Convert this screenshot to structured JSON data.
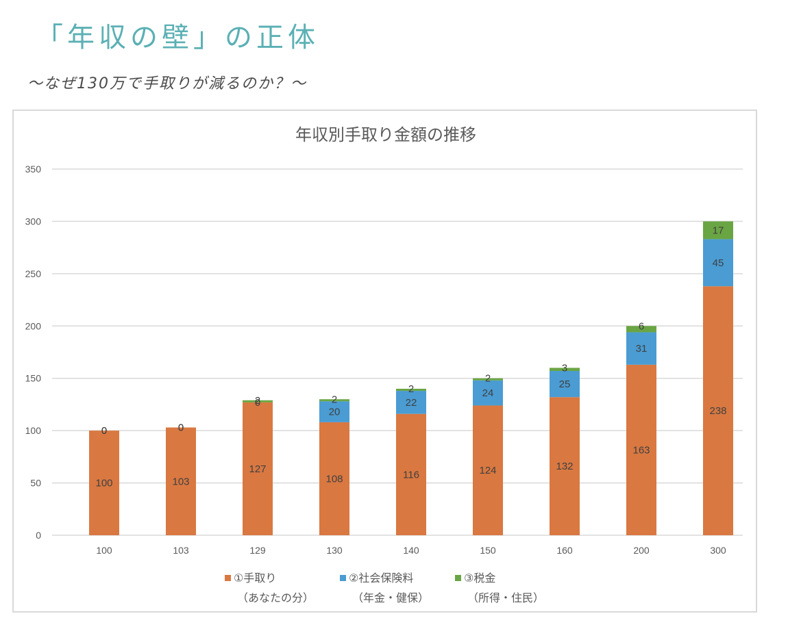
{
  "header": {
    "title": "「年収の壁」の正体",
    "subtitle": "～なぜ130万で手取りが減るのか？～"
  },
  "chart_data": {
    "type": "bar",
    "stacked": true,
    "title": "年収別手取り金額の推移",
    "xlabel": "",
    "ylabel": "",
    "categories": [
      "100",
      "103",
      "129",
      "130",
      "140",
      "150",
      "160",
      "200",
      "300"
    ],
    "ylim": [
      0,
      350
    ],
    "yticks": [
      0,
      50,
      100,
      150,
      200,
      250,
      300,
      350
    ],
    "grid": true,
    "legend_position": "bottom",
    "series": [
      {
        "name": "①手取り",
        "sublabel": "（あなたの分）",
        "color": "#d97841",
        "values": [
          100,
          103,
          127,
          108,
          116,
          124,
          132,
          163,
          238
        ]
      },
      {
        "name": "②社会保険料",
        "sublabel": "（年金・健保）",
        "color": "#4a9cd3",
        "values": [
          0,
          0,
          0,
          20,
          22,
          24,
          25,
          31,
          45
        ]
      },
      {
        "name": "③税金",
        "sublabel": "（所得・住民）",
        "color": "#6aa544",
        "values": [
          0,
          0,
          2,
          2,
          2,
          2,
          3,
          6,
          17
        ]
      }
    ]
  }
}
